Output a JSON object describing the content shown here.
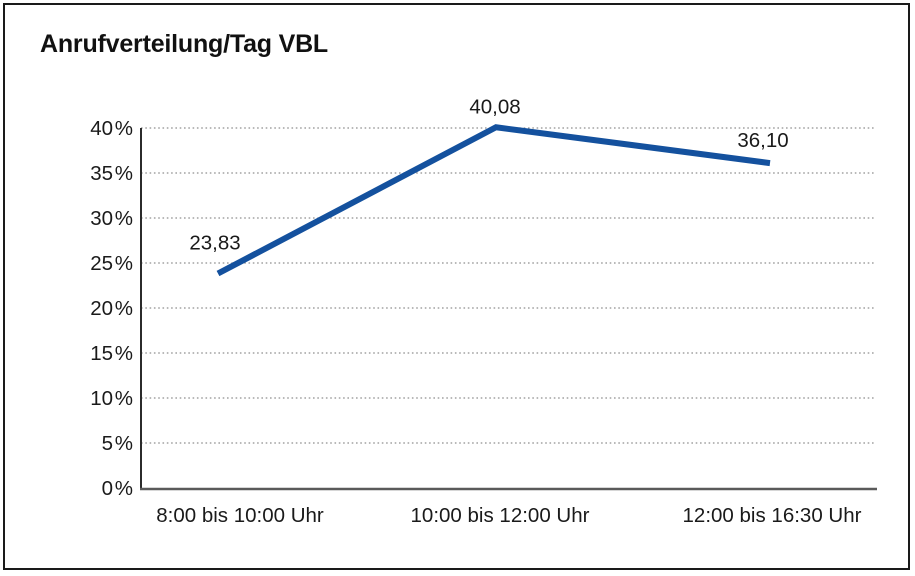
{
  "title": "Anrufverteilung/Tag VBL",
  "colors": {
    "line": "#14519E",
    "grid": "#8f8f8f",
    "axis": "#2b2b2b",
    "text": "#1a1a1a",
    "background": "#ffffff",
    "frame_border": "#1a1a1a"
  },
  "chart_data": {
    "type": "line",
    "title": "Anrufverteilung/Tag VBL",
    "categories": [
      "8:00 bis 10:00 Uhr",
      "10:00 bis 12:00 Uhr",
      "12:00 bis 16:30 Uhr"
    ],
    "values": [
      23.83,
      40.08,
      36.1
    ],
    "value_labels": [
      "23,83",
      "40,08",
      "36,10"
    ],
    "xlabel": "",
    "ylabel": "",
    "ylim": [
      0,
      40
    ],
    "ytick_step": 5,
    "ytick_labels": [
      "0 %",
      "5 %",
      "10 %",
      "15 %",
      "20 %",
      "25 %",
      "30 %",
      "35 %",
      "40 %"
    ],
    "grid": "horizontal-dotted",
    "legend_position": "none",
    "line_color": "#14519E"
  }
}
